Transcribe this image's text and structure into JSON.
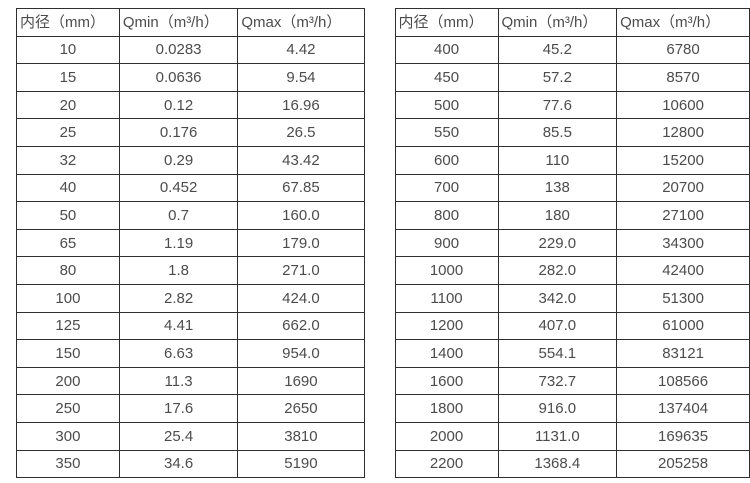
{
  "colors": {
    "border": "#2f2f2f",
    "text": "#4c4c4c",
    "background": "#ffffff"
  },
  "tables": [
    {
      "name": "flow-rate-table-small-diameters",
      "headers": [
        "内径（mm）",
        "Qmin（m³/h）",
        "Qmax（m³/h）"
      ],
      "rows": [
        [
          "10",
          "0.0283",
          "4.42"
        ],
        [
          "15",
          "0.0636",
          "9.54"
        ],
        [
          "20",
          "0.12",
          "16.96"
        ],
        [
          "25",
          "0.176",
          "26.5"
        ],
        [
          "32",
          "0.29",
          "43.42"
        ],
        [
          "40",
          "0.452",
          "67.85"
        ],
        [
          "50",
          "0.7",
          "160.0"
        ],
        [
          "65",
          "1.19",
          "179.0"
        ],
        [
          "80",
          "1.8",
          "271.0"
        ],
        [
          "100",
          "2.82",
          "424.0"
        ],
        [
          "125",
          "4.41",
          "662.0"
        ],
        [
          "150",
          "6.63",
          "954.0"
        ],
        [
          "200",
          "11.3",
          "1690"
        ],
        [
          "250",
          "17.6",
          "2650"
        ],
        [
          "300",
          "25.4",
          "3810"
        ],
        [
          "350",
          "34.6",
          "5190"
        ]
      ]
    },
    {
      "name": "flow-rate-table-large-diameters",
      "headers": [
        "内径（mm）",
        "Qmin（m³/h）",
        "Qmax（m³/h）"
      ],
      "rows": [
        [
          "400",
          "45.2",
          "6780"
        ],
        [
          "450",
          "57.2",
          "8570"
        ],
        [
          "500",
          "77.6",
          "10600"
        ],
        [
          "550",
          "85.5",
          "12800"
        ],
        [
          "600",
          "110",
          "15200"
        ],
        [
          "700",
          "138",
          "20700"
        ],
        [
          "800",
          "180",
          "27100"
        ],
        [
          "900",
          "229.0",
          "34300"
        ],
        [
          "1000",
          "282.0",
          "42400"
        ],
        [
          "1100",
          "342.0",
          "51300"
        ],
        [
          "1200",
          "407.0",
          "61000"
        ],
        [
          "1400",
          "554.1",
          "83121"
        ],
        [
          "1600",
          "732.7",
          "108566"
        ],
        [
          "1800",
          "916.0",
          "137404"
        ],
        [
          "2000",
          "1131.0",
          "169635"
        ],
        [
          "2200",
          "1368.4",
          "205258"
        ]
      ]
    }
  ]
}
